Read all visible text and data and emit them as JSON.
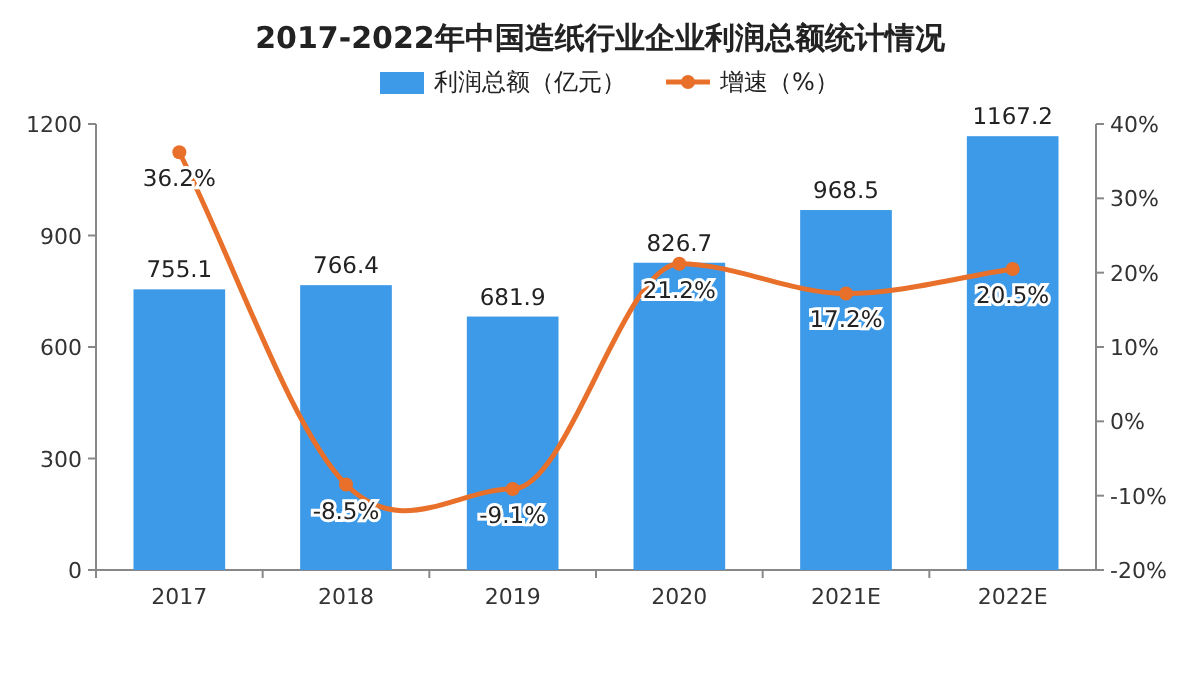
{
  "chart_data": {
    "type": "bar",
    "title": "2017-2022年中国造纸行业企业利润总额统计情况",
    "categories": [
      "2017",
      "2018",
      "2019",
      "2020",
      "2021E",
      "2022E"
    ],
    "series": [
      {
        "name": "利润总额（亿元）",
        "color": "#3c9ae8",
        "values": [
          755.1,
          766.4,
          681.9,
          826.7,
          968.5,
          1167.2
        ]
      },
      {
        "name": "增速（%）",
        "type": "line",
        "axis": "y2",
        "color": "#e8702a",
        "marker": "circle",
        "values": [
          36.2,
          -8.5,
          -9.1,
          21.2,
          17.2,
          20.5
        ],
        "value_labels": [
          "36.2%",
          "-8.5%",
          "-9.1%",
          "21.2%",
          "17.2%",
          "20.5%"
        ]
      }
    ],
    "ylim": [
      0,
      1200
    ],
    "yticks": [
      0,
      300,
      600,
      900,
      1200
    ],
    "y2lim": [
      -20,
      40
    ],
    "y2ticks": [
      {
        "value": -20,
        "label": "-20%"
      },
      {
        "value": -10,
        "label": "-10%"
      },
      {
        "value": 0,
        "label": "0%"
      },
      {
        "value": 10,
        "label": "10%"
      },
      {
        "value": 20,
        "label": "20%"
      },
      {
        "value": 30,
        "label": "30%"
      },
      {
        "value": 40,
        "label": "40%"
      }
    ],
    "data_labels": true,
    "legend": "top",
    "grid": false
  }
}
